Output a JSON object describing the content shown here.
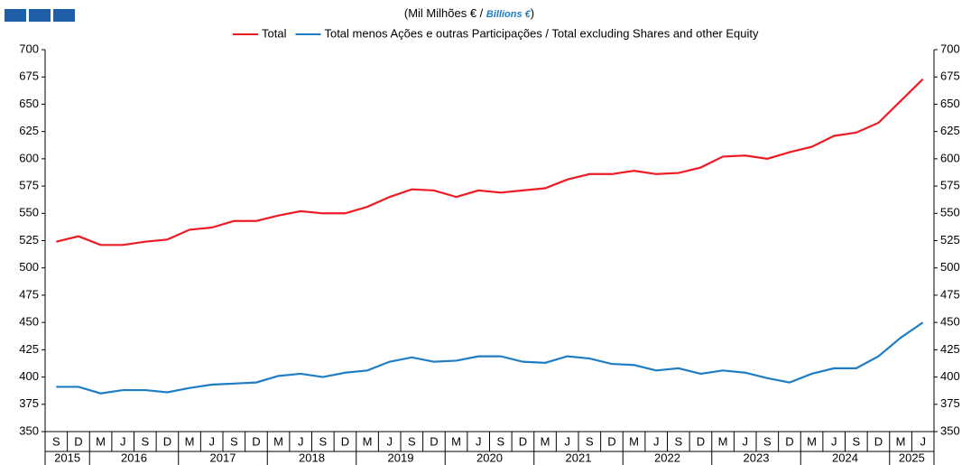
{
  "chart_data": {
    "type": "line",
    "subtitle_main": "(Mil Milhões € / ",
    "subtitle_en": "Billions €",
    "subtitle_close": ")",
    "categories": [
      "S",
      "D",
      "M",
      "J",
      "S",
      "D",
      "M",
      "J",
      "S",
      "D",
      "M",
      "J",
      "S",
      "D",
      "M",
      "J",
      "S",
      "D",
      "M",
      "J",
      "S",
      "D",
      "M",
      "J",
      "S",
      "D",
      "M",
      "J",
      "S",
      "D",
      "M",
      "J",
      "S",
      "D",
      "M",
      "J",
      "S",
      "D",
      "M",
      "J"
    ],
    "year_groups": [
      {
        "label": "2015",
        "span": 2
      },
      {
        "label": "2016",
        "span": 4
      },
      {
        "label": "2017",
        "span": 4
      },
      {
        "label": "2018",
        "span": 4
      },
      {
        "label": "2019",
        "span": 4
      },
      {
        "label": "2020",
        "span": 4
      },
      {
        "label": "2021",
        "span": 4
      },
      {
        "label": "2022",
        "span": 4
      },
      {
        "label": "2023",
        "span": 4
      },
      {
        "label": "2024",
        "span": 4
      },
      {
        "label": "2025",
        "span": 2
      }
    ],
    "series": [
      {
        "name": "Total",
        "color": "#ed1c24",
        "values": [
          524,
          529,
          521,
          521,
          524,
          526,
          535,
          537,
          543,
          543,
          548,
          552,
          550,
          550,
          556,
          565,
          572,
          571,
          565,
          571,
          569,
          571,
          573,
          581,
          586,
          586,
          589,
          586,
          587,
          592,
          602,
          603,
          600,
          606,
          611,
          621,
          624,
          633,
          653,
          673
        ]
      },
      {
        "name": "Total menos Ações e outras Participações / Total excluding Shares and other Equity",
        "color": "#1f7dc4",
        "values": [
          391,
          391,
          385,
          388,
          388,
          386,
          390,
          393,
          394,
          395,
          401,
          403,
          400,
          404,
          406,
          414,
          418,
          414,
          415,
          419,
          419,
          414,
          413,
          419,
          417,
          412,
          411,
          406,
          408,
          403,
          406,
          404,
          399,
          395,
          403,
          408,
          408,
          419,
          436,
          450
        ]
      }
    ],
    "ylim": [
      350,
      700
    ],
    "yticks": [
      350,
      375,
      400,
      425,
      450,
      475,
      500,
      525,
      550,
      575,
      600,
      625,
      650,
      675,
      700
    ],
    "y_right_labels": true,
    "grid": false
  }
}
